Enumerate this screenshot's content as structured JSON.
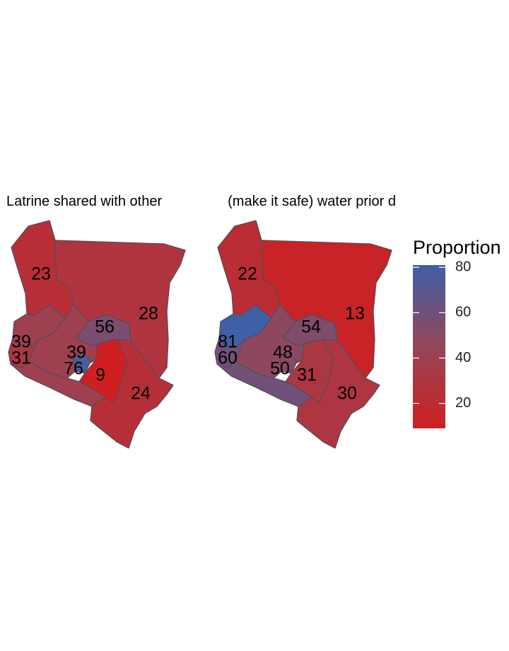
{
  "chart_data": {
    "type": "choropleth",
    "panels": [
      {
        "title": "Latrine shared with other",
        "regions": [
          {
            "id": "north-west",
            "value": 23
          },
          {
            "id": "north-east",
            "value": 28
          },
          {
            "id": "east-central",
            "value": 56
          },
          {
            "id": "west-north",
            "value": 39
          },
          {
            "id": "west-south",
            "value": 31
          },
          {
            "id": "central",
            "value": 39
          },
          {
            "id": "nairobi",
            "value": 76
          },
          {
            "id": "south-central",
            "value": 9
          },
          {
            "id": "coast",
            "value": 24
          }
        ]
      },
      {
        "title": "(make it safe) water prior d",
        "regions": [
          {
            "id": "north-west",
            "value": 22
          },
          {
            "id": "north-east",
            "value": 13
          },
          {
            "id": "east-central",
            "value": 54
          },
          {
            "id": "west-north",
            "value": 81
          },
          {
            "id": "west-south",
            "value": 60
          },
          {
            "id": "central",
            "value": 48
          },
          {
            "id": "nairobi",
            "value": 50
          },
          {
            "id": "south-central",
            "value": 31
          },
          {
            "id": "coast",
            "value": 30
          }
        ]
      }
    ],
    "legend": {
      "title": "Proportion",
      "ticks": [
        80,
        60,
        40,
        20
      ],
      "range": [
        9,
        81
      ],
      "low_color": "#cf1f21",
      "high_color": "#3f5fa6"
    }
  }
}
